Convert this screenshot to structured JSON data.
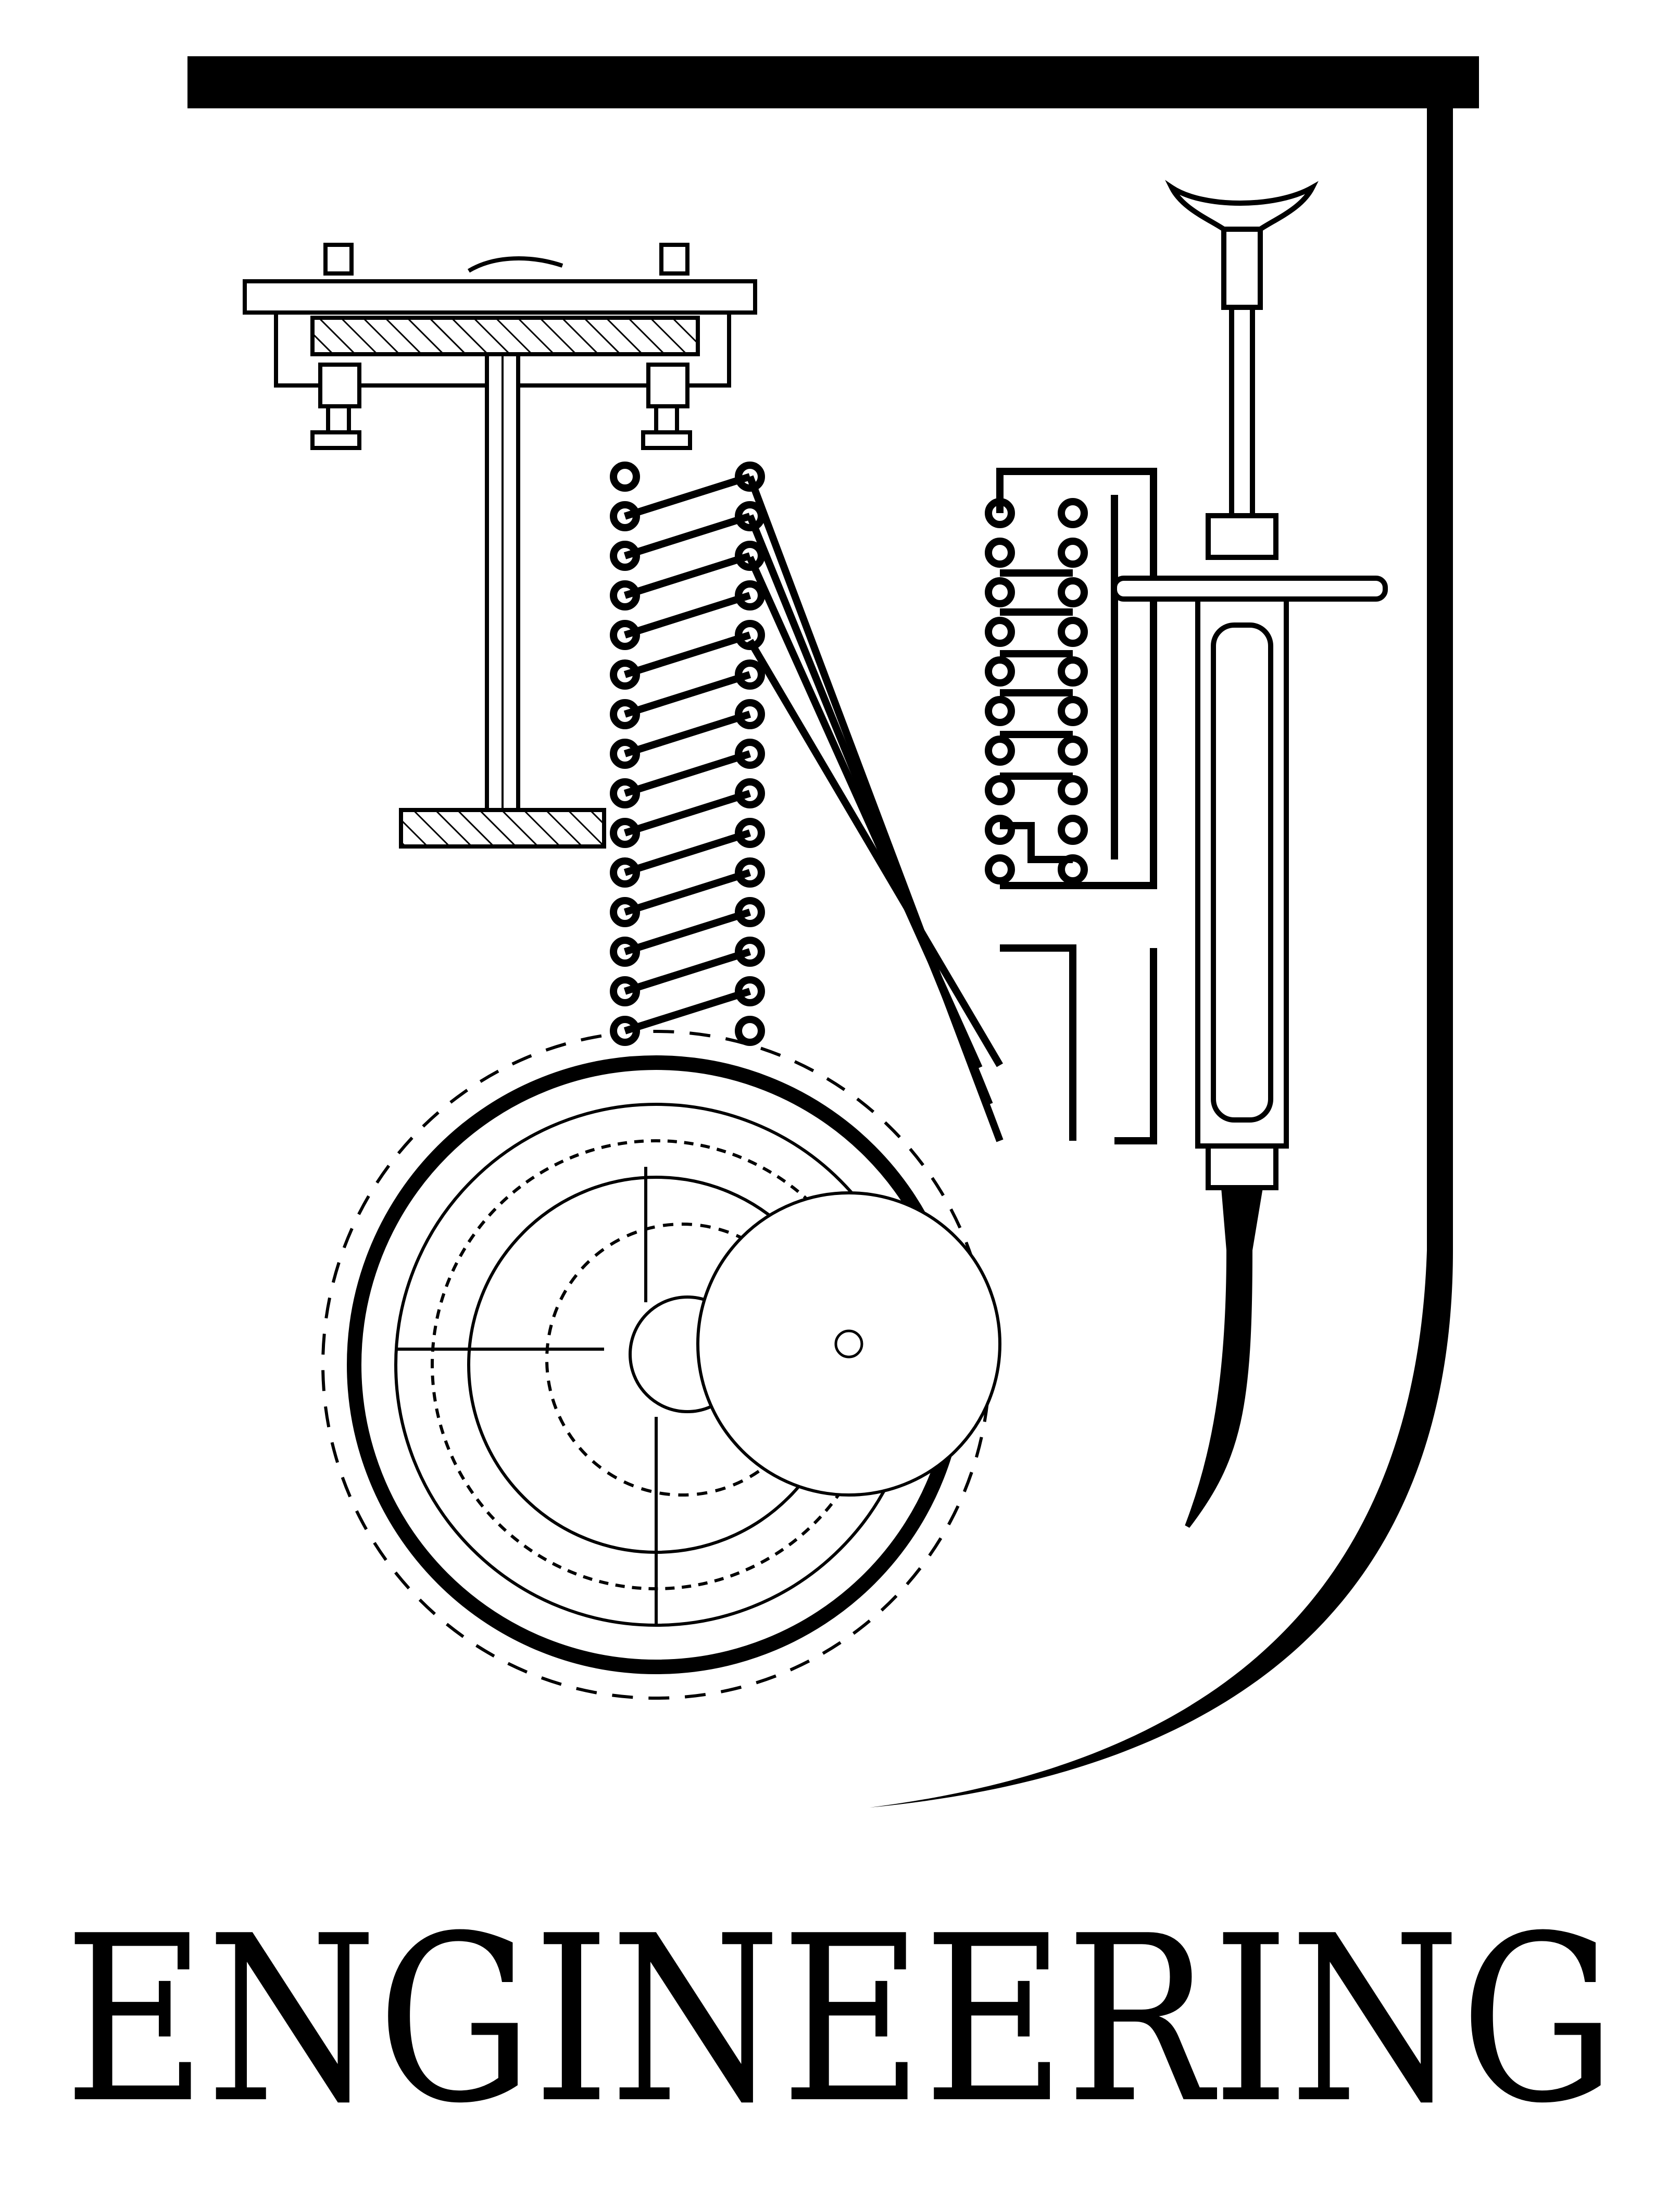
{
  "logo": {
    "wordmark": "ENGINEERING",
    "ink_color": "#000000",
    "background_color": "#ffffff",
    "letterforms": [
      "I",
      "N",
      "J"
    ],
    "motifs": [
      "i-beam-icon",
      "circuit-board-icon",
      "syringe-icon",
      "gear-icon"
    ]
  }
}
